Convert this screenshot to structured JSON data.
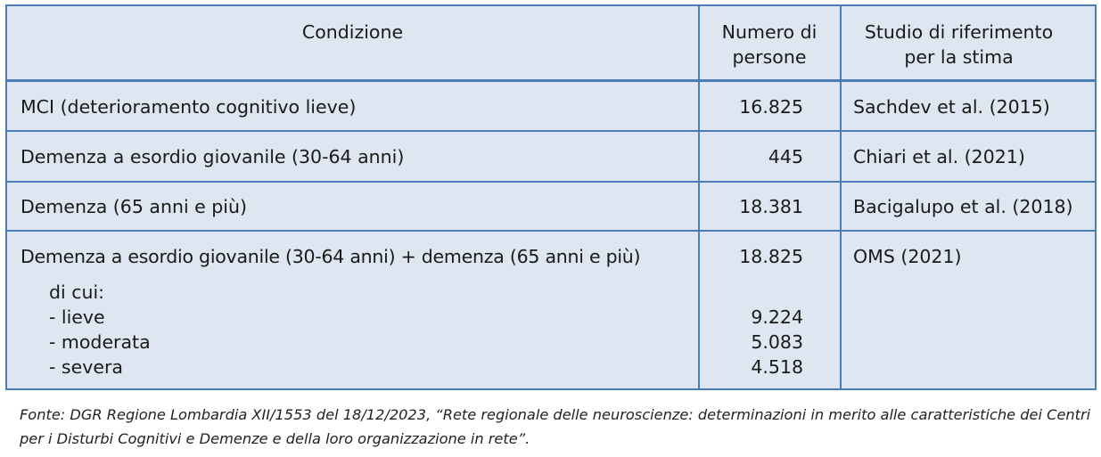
{
  "table": {
    "headers": {
      "condition": "Condizione",
      "count": "Numero di persone",
      "study": "Studio di riferimento per la stima"
    },
    "rows": [
      {
        "condition": "MCI (deterioramento cognitivo lieve)",
        "count": "16.825",
        "study": "Sachdev et al. (2015)"
      },
      {
        "condition": "Demenza a esordio giovanile (30-64 anni)",
        "count": "445",
        "study": "Chiari et al. (2021)"
      },
      {
        "condition": "Demenza (65 anni e più)",
        "count": "18.381",
        "study": "Bacigalupo et al. (2018)"
      },
      {
        "condition": "Demenza a esordio giovanile (30-64 anni) + demenza (65 anni e più)",
        "count": "18.825",
        "study": "OMS (2021)",
        "breakdown_label": "di cui:",
        "breakdown": [
          {
            "label": "- lieve",
            "count": "9.224"
          },
          {
            "label": "- moderata",
            "count": "5.083"
          },
          {
            "label": "- severa",
            "count": "4.518"
          }
        ]
      }
    ]
  },
  "source": "Fonte: DGR Regione Lombardia XII/1553 del 18/12/2023, “Rete regionale delle neuroscienze: determinazioni in merito alle caratteristiche dei Centri per i Disturbi Cognitivi e Demenze e della loro organizzazione in rete”."
}
